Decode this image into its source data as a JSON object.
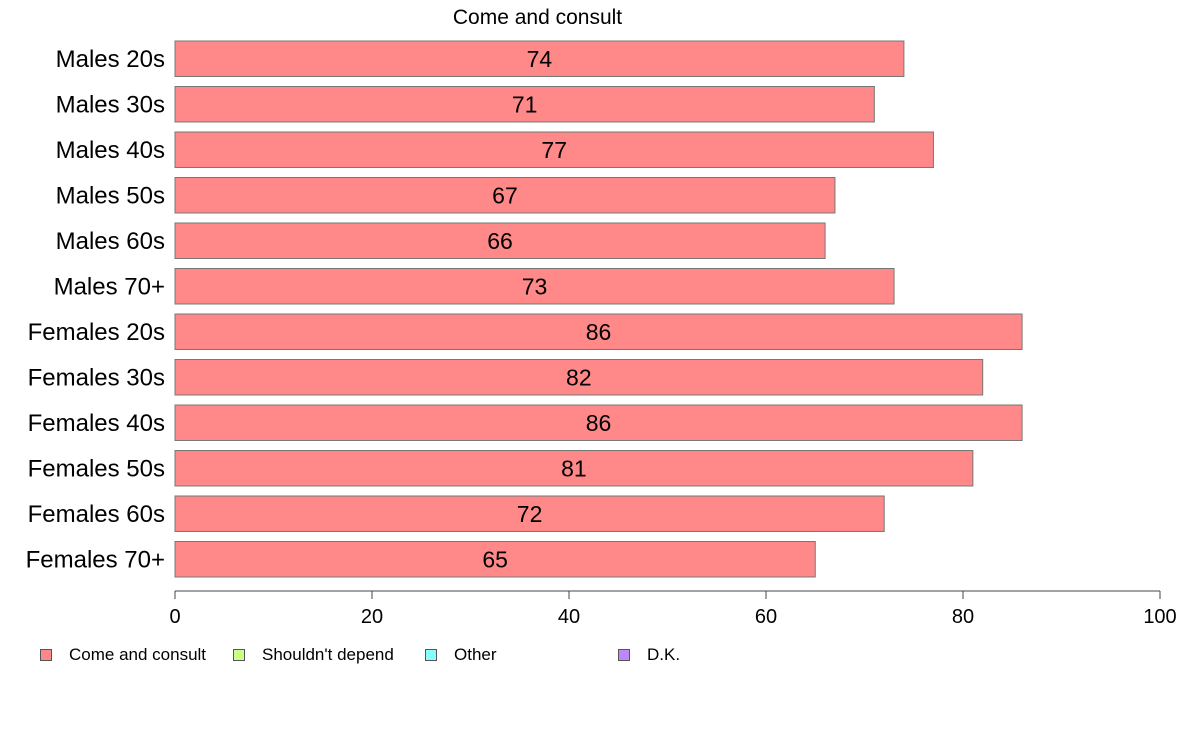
{
  "chart_data": {
    "type": "bar",
    "orientation": "horizontal",
    "title": "Come and consult",
    "categories": [
      "Males 20s",
      "Males 30s",
      "Males 40s",
      "Males 50s",
      "Males 60s",
      "Males 70+",
      "Females 20s",
      "Females 30s",
      "Females 40s",
      "Females 50s",
      "Females 60s",
      "Females 70+"
    ],
    "series": [
      {
        "name": "Come and consult",
        "color": "#ff8888",
        "values": [
          74,
          71,
          77,
          67,
          66,
          73,
          86,
          82,
          86,
          81,
          72,
          65
        ]
      }
    ],
    "xlim": [
      0,
      100
    ],
    "xticks": [
      "0",
      "20",
      "40",
      "60",
      "80",
      "100"
    ],
    "legend": [
      {
        "label": "Come and consult",
        "color": "#ff8888"
      },
      {
        "label": "Shouldn't depend",
        "color": "#ccff88"
      },
      {
        "label": "Other",
        "color": "#88ffff"
      },
      {
        "label": "D.K.",
        "color": "#bb88ff"
      }
    ],
    "legend_position": "bottom-left",
    "grid": false
  }
}
